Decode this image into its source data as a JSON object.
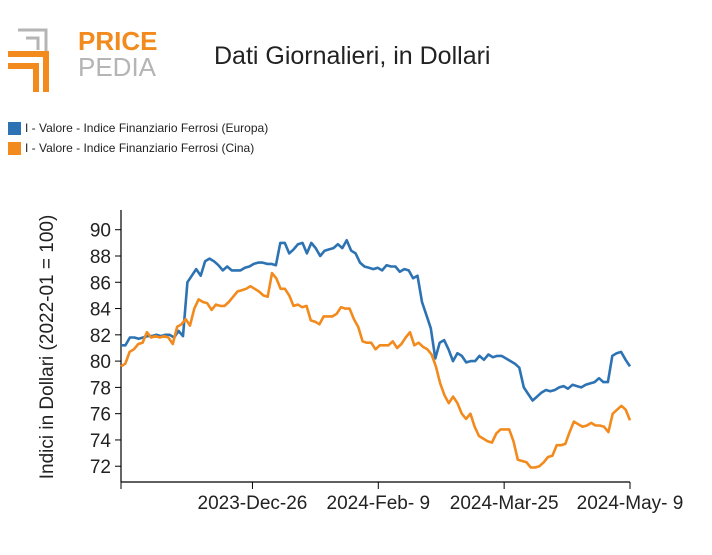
{
  "logo": {
    "word_top": "PRICE",
    "word_bottom": "PEDIA",
    "brand_orange": "#f28a1d",
    "brand_gray": "#b5b5b5"
  },
  "colors": {
    "europa": "#2d73b3",
    "cina": "#f28a1d",
    "axis": "#000000"
  },
  "chart_data": {
    "type": "line",
    "title": "Dati Giornalieri, in Dollari",
    "ylabel": "Indici in Dollari (2022-01 = 100)",
    "xlabel": "",
    "ylim": [
      70.8,
      91.5
    ],
    "yticks": [
      72,
      74,
      76,
      78,
      80,
      82,
      84,
      86,
      88,
      90
    ],
    "x_ticks": [
      {
        "label": "2023-Dec-26",
        "index": 47
      },
      {
        "label": "2024-Feb- 9",
        "index": 92
      },
      {
        "label": "2024-Mar-25",
        "index": 137
      },
      {
        "label": "2024-May- 9",
        "index": 182
      }
    ],
    "x_range": [
      0,
      182
    ],
    "legend_position": "top-left",
    "grid": false,
    "series": [
      {
        "name": "I - Valore - Indice Finanziario Ferrosi (Europa)",
        "color": "#2d73b3",
        "points": [
          [
            0,
            81.2
          ],
          [
            1,
            81.2
          ],
          [
            2,
            81.8
          ],
          [
            3,
            81.8
          ],
          [
            4,
            81.7
          ],
          [
            5,
            81.8
          ],
          [
            6,
            81.9
          ],
          [
            7,
            81.9
          ],
          [
            8,
            82.0
          ],
          [
            9,
            81.9
          ],
          [
            10,
            82.0
          ],
          [
            11,
            82.0
          ],
          [
            12,
            81.8
          ],
          [
            13,
            82.3
          ],
          [
            14,
            81.9
          ],
          [
            15,
            86.0
          ],
          [
            16,
            86.5
          ],
          [
            17,
            87.0
          ],
          [
            18,
            86.5
          ],
          [
            19,
            87.6
          ],
          [
            20,
            87.8
          ],
          [
            21,
            87.6
          ],
          [
            22,
            87.3
          ],
          [
            23,
            86.9
          ],
          [
            24,
            87.2
          ],
          [
            25,
            86.9
          ],
          [
            26,
            86.9
          ],
          [
            27,
            86.9
          ],
          [
            28,
            87.1
          ],
          [
            29,
            87.2
          ],
          [
            30,
            87.4
          ],
          [
            31,
            87.5
          ],
          [
            32,
            87.5
          ],
          [
            33,
            87.4
          ],
          [
            34,
            87.4
          ],
          [
            35,
            87.3
          ],
          [
            36,
            89.0
          ],
          [
            37,
            89.0
          ],
          [
            38,
            88.2
          ],
          [
            39,
            88.5
          ],
          [
            40,
            88.9
          ],
          [
            41,
            89.0
          ],
          [
            42,
            88.2
          ],
          [
            43,
            89.0
          ],
          [
            44,
            88.6
          ],
          [
            45,
            88.0
          ],
          [
            46,
            88.4
          ],
          [
            47,
            88.5
          ],
          [
            48,
            88.6
          ],
          [
            49,
            88.9
          ],
          [
            50,
            88.6
          ],
          [
            51,
            89.2
          ],
          [
            52,
            88.4
          ],
          [
            53,
            88.2
          ],
          [
            54,
            87.5
          ],
          [
            55,
            87.2
          ],
          [
            56,
            87.1
          ],
          [
            57,
            87.0
          ],
          [
            58,
            87.1
          ],
          [
            59,
            86.9
          ],
          [
            60,
            87.3
          ],
          [
            61,
            87.2
          ],
          [
            62,
            87.2
          ],
          [
            63,
            86.8
          ],
          [
            64,
            87.0
          ],
          [
            65,
            86.9
          ],
          [
            66,
            86.3
          ],
          [
            67,
            86.5
          ],
          [
            68,
            84.5
          ],
          [
            69,
            83.5
          ],
          [
            70,
            82.5
          ],
          [
            71,
            80.2
          ],
          [
            72,
            81.4
          ],
          [
            73,
            81.6
          ],
          [
            74,
            80.9
          ],
          [
            75,
            80.0
          ],
          [
            76,
            80.6
          ],
          [
            77,
            80.4
          ],
          [
            78,
            79.9
          ],
          [
            79,
            80.0
          ],
          [
            80,
            80.0
          ],
          [
            81,
            80.4
          ],
          [
            82,
            80.1
          ],
          [
            83,
            80.5
          ],
          [
            84,
            80.3
          ],
          [
            85,
            80.4
          ],
          [
            86,
            80.4
          ],
          [
            87,
            80.2
          ],
          [
            88,
            80.0
          ],
          [
            89,
            79.8
          ],
          [
            90,
            79.5
          ],
          [
            91,
            78.0
          ],
          [
            92,
            77.5
          ],
          [
            93,
            77.0
          ],
          [
            94,
            77.3
          ],
          [
            95,
            77.6
          ],
          [
            96,
            77.8
          ],
          [
            97,
            77.7
          ],
          [
            98,
            77.8
          ],
          [
            99,
            78.0
          ],
          [
            100,
            78.1
          ],
          [
            101,
            77.9
          ],
          [
            102,
            78.2
          ],
          [
            103,
            78.1
          ],
          [
            104,
            78.0
          ],
          [
            105,
            78.2
          ],
          [
            106,
            78.3
          ],
          [
            107,
            78.4
          ],
          [
            108,
            78.7
          ],
          [
            109,
            78.4
          ],
          [
            110,
            78.4
          ],
          [
            111,
            80.4
          ],
          [
            112,
            80.6
          ],
          [
            113,
            80.7
          ],
          [
            114,
            80.1
          ],
          [
            115,
            79.6
          ]
        ]
      },
      {
        "name": "I - Valore - Indice Finanziario Ferrosi (Cina)",
        "color": "#f28a1d",
        "points": [
          [
            0,
            79.6
          ],
          [
            1,
            79.8
          ],
          [
            2,
            80.7
          ],
          [
            3,
            80.9
          ],
          [
            4,
            81.3
          ],
          [
            5,
            81.4
          ],
          [
            6,
            82.2
          ],
          [
            7,
            81.8
          ],
          [
            8,
            81.9
          ],
          [
            9,
            81.8
          ],
          [
            10,
            81.9
          ],
          [
            11,
            81.8
          ],
          [
            12,
            81.3
          ],
          [
            13,
            82.6
          ],
          [
            14,
            82.8
          ],
          [
            15,
            83.2
          ],
          [
            16,
            82.7
          ],
          [
            17,
            84.0
          ],
          [
            18,
            84.7
          ],
          [
            19,
            84.5
          ],
          [
            20,
            84.4
          ],
          [
            21,
            83.9
          ],
          [
            22,
            84.3
          ],
          [
            23,
            84.2
          ],
          [
            24,
            84.2
          ],
          [
            25,
            84.5
          ],
          [
            26,
            84.9
          ],
          [
            27,
            85.3
          ],
          [
            28,
            85.4
          ],
          [
            29,
            85.5
          ],
          [
            30,
            85.7
          ],
          [
            31,
            85.5
          ],
          [
            32,
            85.3
          ],
          [
            33,
            85.0
          ],
          [
            34,
            84.9
          ],
          [
            35,
            86.7
          ],
          [
            36,
            86.3
          ],
          [
            37,
            85.5
          ],
          [
            38,
            85.5
          ],
          [
            39,
            85.0
          ],
          [
            40,
            84.2
          ],
          [
            41,
            84.3
          ],
          [
            42,
            84.1
          ],
          [
            43,
            84.2
          ],
          [
            44,
            83.1
          ],
          [
            45,
            83.0
          ],
          [
            46,
            82.8
          ],
          [
            47,
            83.4
          ],
          [
            48,
            83.4
          ],
          [
            49,
            83.4
          ],
          [
            50,
            83.6
          ],
          [
            51,
            84.1
          ],
          [
            52,
            84.0
          ],
          [
            53,
            84.0
          ],
          [
            54,
            83.2
          ],
          [
            55,
            82.6
          ],
          [
            56,
            81.5
          ],
          [
            57,
            81.4
          ],
          [
            58,
            81.4
          ],
          [
            59,
            80.9
          ],
          [
            60,
            81.2
          ],
          [
            61,
            81.2
          ],
          [
            62,
            81.2
          ],
          [
            63,
            81.5
          ],
          [
            64,
            81.0
          ],
          [
            65,
            81.3
          ],
          [
            66,
            81.8
          ],
          [
            67,
            82.2
          ],
          [
            68,
            81.2
          ],
          [
            69,
            81.4
          ],
          [
            70,
            81.1
          ],
          [
            71,
            80.9
          ],
          [
            72,
            80.5
          ],
          [
            73,
            79.6
          ],
          [
            74,
            78.3
          ],
          [
            75,
            77.4
          ],
          [
            76,
            76.8
          ],
          [
            77,
            77.3
          ],
          [
            78,
            76.8
          ],
          [
            79,
            76.0
          ],
          [
            80,
            75.6
          ],
          [
            81,
            76.0
          ],
          [
            82,
            75.0
          ],
          [
            83,
            74.3
          ],
          [
            84,
            74.1
          ],
          [
            85,
            73.9
          ],
          [
            86,
            73.8
          ],
          [
            87,
            74.5
          ],
          [
            88,
            74.8
          ],
          [
            89,
            74.8
          ],
          [
            90,
            74.8
          ],
          [
            91,
            73.9
          ],
          [
            92,
            72.5
          ],
          [
            93,
            72.4
          ],
          [
            94,
            72.3
          ],
          [
            95,
            71.9
          ],
          [
            96,
            71.9
          ],
          [
            97,
            72.0
          ],
          [
            98,
            72.3
          ],
          [
            99,
            72.7
          ],
          [
            100,
            72.8
          ],
          [
            101,
            73.6
          ],
          [
            102,
            73.6
          ],
          [
            103,
            73.7
          ],
          [
            104,
            74.6
          ],
          [
            105,
            75.4
          ],
          [
            106,
            75.2
          ],
          [
            107,
            75.0
          ],
          [
            108,
            75.1
          ],
          [
            109,
            75.3
          ],
          [
            110,
            75.1
          ],
          [
            111,
            75.1
          ],
          [
            112,
            75.0
          ],
          [
            113,
            74.6
          ],
          [
            114,
            76.0
          ],
          [
            115,
            76.3
          ],
          [
            116,
            76.6
          ],
          [
            117,
            76.3
          ],
          [
            118,
            75.5
          ]
        ]
      }
    ]
  }
}
